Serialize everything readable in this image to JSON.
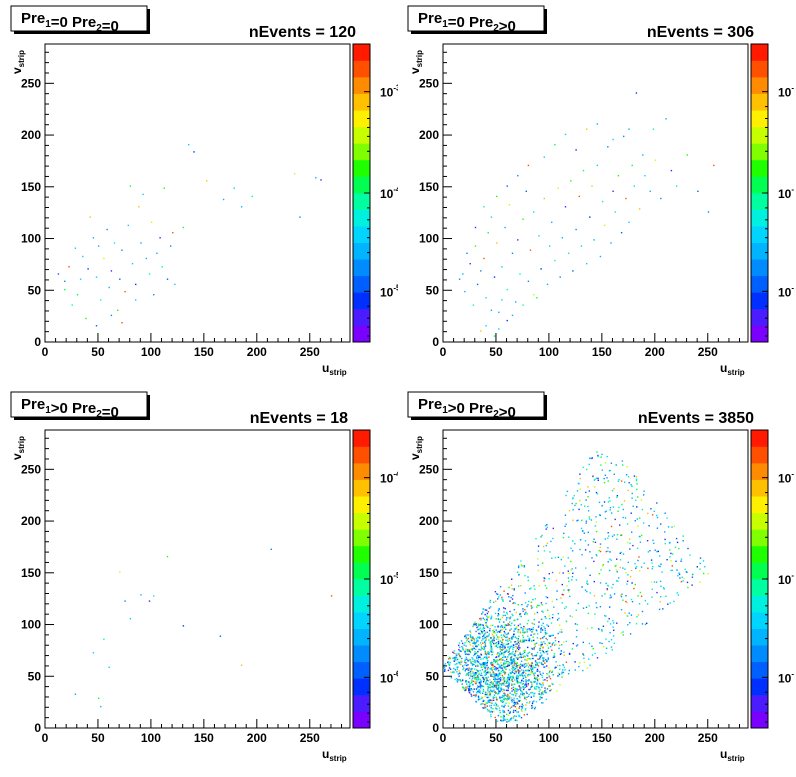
{
  "chart_data": [
    {
      "type": "heatmap",
      "label": {
        "base1": "Pre",
        "sub1": "1",
        "cond1": "=0",
        "base2": "Pre",
        "sub2": "2",
        "cond2": "=0"
      },
      "events_text": "nEvents = 120",
      "xlabel": {
        "base": "u",
        "sub": "strip"
      },
      "ylabel": {
        "base": "v",
        "sub": "strip"
      },
      "xlim": [
        0,
        288
      ],
      "ylim": [
        0,
        288
      ],
      "xticks": [
        "0",
        "50",
        "100",
        "150",
        "200",
        "250"
      ],
      "yticks": [
        "0",
        "50",
        "100",
        "150",
        "200",
        "250"
      ],
      "colorbar": {
        "scale": "log",
        "labels": [
          {
            "base": "10",
            "exp": "-3"
          },
          {
            "base": "10",
            "exp": "-4"
          },
          {
            "base": "10",
            "exp": "-5"
          }
        ]
      },
      "points": [
        [
          12,
          65
        ],
        [
          18,
          58
        ],
        [
          22,
          72
        ],
        [
          28,
          90
        ],
        [
          30,
          45
        ],
        [
          35,
          82
        ],
        [
          40,
          70
        ],
        [
          42,
          120
        ],
        [
          45,
          100
        ],
        [
          48,
          62
        ],
        [
          50,
          92
        ],
        [
          52,
          40
        ],
        [
          55,
          80
        ],
        [
          58,
          108
        ],
        [
          60,
          52
        ],
        [
          62,
          68
        ],
        [
          65,
          95
        ],
        [
          68,
          30
        ],
        [
          70,
          60
        ],
        [
          72,
          88
        ],
        [
          75,
          48
        ],
        [
          78,
          112
        ],
        [
          80,
          150
        ],
        [
          82,
          75
        ],
        [
          85,
          55
        ],
        [
          88,
          130
        ],
        [
          90,
          95
        ],
        [
          92,
          142
        ],
        [
          95,
          80
        ],
        [
          98,
          65
        ],
        [
          100,
          115
        ],
        [
          102,
          45
        ],
        [
          105,
          85
        ],
        [
          108,
          100
        ],
        [
          110,
          72
        ],
        [
          112,
          148
        ],
        [
          115,
          60
        ],
        [
          118,
          92
        ],
        [
          120,
          105
        ],
        [
          122,
          55
        ],
        [
          130,
          110
        ],
        [
          135,
          190
        ],
        [
          140,
          183
        ],
        [
          152,
          155
        ],
        [
          168,
          137
        ],
        [
          178,
          148
        ],
        [
          185,
          130
        ],
        [
          195,
          140
        ],
        [
          235,
          162
        ],
        [
          240,
          120
        ],
        [
          255,
          158
        ],
        [
          260,
          156
        ],
        [
          25,
          35
        ],
        [
          38,
          22
        ],
        [
          48,
          15
        ],
        [
          62,
          25
        ],
        [
          72,
          18
        ],
        [
          85,
          40
        ],
        [
          18,
          50
        ],
        [
          33,
          60
        ]
      ]
    },
    {
      "type": "heatmap",
      "label": {
        "base1": "Pre",
        "sub1": "1",
        "cond1": "=0",
        "base2": "Pre",
        "sub2": "2",
        "cond2": ">0"
      },
      "events_text": "nEvents = 306",
      "xlabel": {
        "base": "u",
        "sub": "strip"
      },
      "ylabel": {
        "base": "v",
        "sub": "strip"
      },
      "xlim": [
        0,
        288
      ],
      "ylim": [
        0,
        288
      ],
      "xticks": [
        "0",
        "50",
        "100",
        "150",
        "200",
        "250"
      ],
      "yticks": [
        "0",
        "50",
        "100",
        "150",
        "200",
        "250"
      ],
      "colorbar": {
        "scale": "log",
        "labels": [
          {
            "base": "10",
            "exp": "-"
          },
          {
            "base": "10",
            "exp": "-"
          },
          {
            "base": "10",
            "exp": "-"
          }
        ]
      },
      "points": [
        [
          15,
          60
        ],
        [
          20,
          48
        ],
        [
          25,
          75
        ],
        [
          28,
          35
        ],
        [
          30,
          92
        ],
        [
          32,
          55
        ],
        [
          35,
          68
        ],
        [
          38,
          80
        ],
        [
          40,
          42
        ],
        [
          42,
          105
        ],
        [
          45,
          120
        ],
        [
          48,
          62
        ],
        [
          50,
          95
        ],
        [
          52,
          28
        ],
        [
          55,
          72
        ],
        [
          58,
          110
        ],
        [
          60,
          50
        ],
        [
          62,
          132
        ],
        [
          65,
          85
        ],
        [
          68,
          38
        ],
        [
          70,
          98
        ],
        [
          72,
          65
        ],
        [
          75,
          118
        ],
        [
          78,
          145
        ],
        [
          80,
          58
        ],
        [
          82,
          88
        ],
        [
          85,
          125
        ],
        [
          88,
          42
        ],
        [
          90,
          102
        ],
        [
          92,
          70
        ],
        [
          95,
          138
        ],
        [
          98,
          55
        ],
        [
          100,
          92
        ],
        [
          102,
          115
        ],
        [
          105,
          78
        ],
        [
          108,
          148
        ],
        [
          110,
          62
        ],
        [
          112,
          100
        ],
        [
          115,
          130
        ],
        [
          118,
          85
        ],
        [
          120,
          155
        ],
        [
          122,
          68
        ],
        [
          125,
          108
        ],
        [
          128,
          140
        ],
        [
          130,
          92
        ],
        [
          132,
          165
        ],
        [
          135,
          75
        ],
        [
          138,
          120
        ],
        [
          140,
          150
        ],
        [
          142,
          98
        ],
        [
          145,
          170
        ],
        [
          148,
          82
        ],
        [
          150,
          135
        ],
        [
          152,
          112
        ],
        [
          155,
          188
        ],
        [
          158,
          95
        ],
        [
          160,
          145
        ],
        [
          162,
          125
        ],
        [
          165,
          160
        ],
        [
          168,
          105
        ],
        [
          170,
          198
        ],
        [
          172,
          138
        ],
        [
          175,
          115
        ],
        [
          178,
          170
        ],
        [
          180,
          150
        ],
        [
          182,
          240
        ],
        [
          185,
          128
        ],
        [
          188,
          180
        ],
        [
          190,
          160
        ],
        [
          195,
          145
        ],
        [
          198,
          205
        ],
        [
          200,
          175
        ],
        [
          205,
          138
        ],
        [
          210,
          215
        ],
        [
          215,
          165
        ],
        [
          220,
          150
        ],
        [
          230,
          180
        ],
        [
          240,
          145
        ],
        [
          250,
          125
        ],
        [
          255,
          170
        ],
        [
          40,
          15
        ],
        [
          48,
          5
        ],
        [
          52,
          12
        ],
        [
          60,
          20
        ],
        [
          35,
          10
        ],
        [
          45,
          30
        ],
        [
          55,
          40
        ],
        [
          65,
          25
        ],
        [
          75,
          35
        ],
        [
          85,
          45
        ],
        [
          22,
          85
        ],
        [
          18,
          65
        ],
        [
          30,
          110
        ],
        [
          38,
          130
        ],
        [
          50,
          140
        ],
        [
          60,
          150
        ],
        [
          70,
          160
        ],
        [
          80,
          170
        ],
        [
          95,
          178
        ],
        [
          105,
          190
        ],
        [
          115,
          200
        ],
        [
          125,
          185
        ],
        [
          135,
          205
        ],
        [
          145,
          210
        ],
        [
          160,
          195
        ],
        [
          175,
          205
        ]
      ]
    },
    {
      "type": "heatmap",
      "label": {
        "base1": "Pre",
        "sub1": "1",
        "cond1": ">0",
        "base2": "Pre",
        "sub2": "2",
        "cond2": "=0"
      },
      "events_text": "nEvents = 18",
      "xlabel": {
        "base": "u",
        "sub": "strip"
      },
      "ylabel": {
        "base": "v",
        "sub": "strip"
      },
      "xlim": [
        0,
        288
      ],
      "ylim": [
        0,
        288
      ],
      "xticks": [
        "0",
        "50",
        "100",
        "150",
        "200",
        "250"
      ],
      "yticks": [
        "0",
        "50",
        "100",
        "150",
        "200",
        "250"
      ],
      "colorbar": {
        "scale": "log",
        "labels": [
          {
            "base": "10",
            "exp": "-4"
          },
          {
            "base": "10",
            "exp": "-5"
          },
          {
            "base": "10",
            "exp": "-6"
          }
        ]
      },
      "points": [
        [
          28,
          32
        ],
        [
          45,
          72
        ],
        [
          52,
          20
        ],
        [
          55,
          85
        ],
        [
          70,
          150
        ],
        [
          75,
          122
        ],
        [
          90,
          128
        ],
        [
          98,
          122
        ],
        [
          102,
          127
        ],
        [
          115,
          165
        ],
        [
          165,
          88
        ],
        [
          213,
          172
        ],
        [
          270,
          127
        ],
        [
          60,
          58
        ],
        [
          50,
          28
        ],
        [
          80,
          105
        ],
        [
          130,
          98
        ],
        [
          185,
          60
        ]
      ]
    },
    {
      "type": "heatmap",
      "label": {
        "base1": "Pre",
        "sub1": "1",
        "cond1": ">0",
        "base2": "Pre",
        "sub2": "2",
        "cond2": ">0"
      },
      "events_text": "nEvents = 3850",
      "xlabel": {
        "base": "u",
        "sub": "strip"
      },
      "ylabel": {
        "base": "v",
        "sub": "strip"
      },
      "xlim": [
        0,
        288
      ],
      "ylim": [
        0,
        288
      ],
      "xticks": [
        "0",
        "50",
        "100",
        "150",
        "200",
        "250"
      ],
      "yticks": [
        "0",
        "50",
        "100",
        "150",
        "200",
        "250"
      ],
      "colorbar": {
        "scale": "log",
        "labels": [
          {
            "base": "10",
            "exp": "-"
          },
          {
            "base": "10",
            "exp": "-"
          },
          {
            "base": "10",
            "exp": "-"
          }
        ]
      },
      "density": {
        "events": 3850,
        "region": [
          [
            0,
            55
          ],
          [
            50,
            5
          ],
          [
            70,
            5
          ],
          [
            255,
            150
          ],
          [
            160,
            270
          ],
          [
            140,
            265
          ],
          [
            0,
            60
          ]
        ],
        "core": [
          50,
          55
        ]
      }
    }
  ]
}
